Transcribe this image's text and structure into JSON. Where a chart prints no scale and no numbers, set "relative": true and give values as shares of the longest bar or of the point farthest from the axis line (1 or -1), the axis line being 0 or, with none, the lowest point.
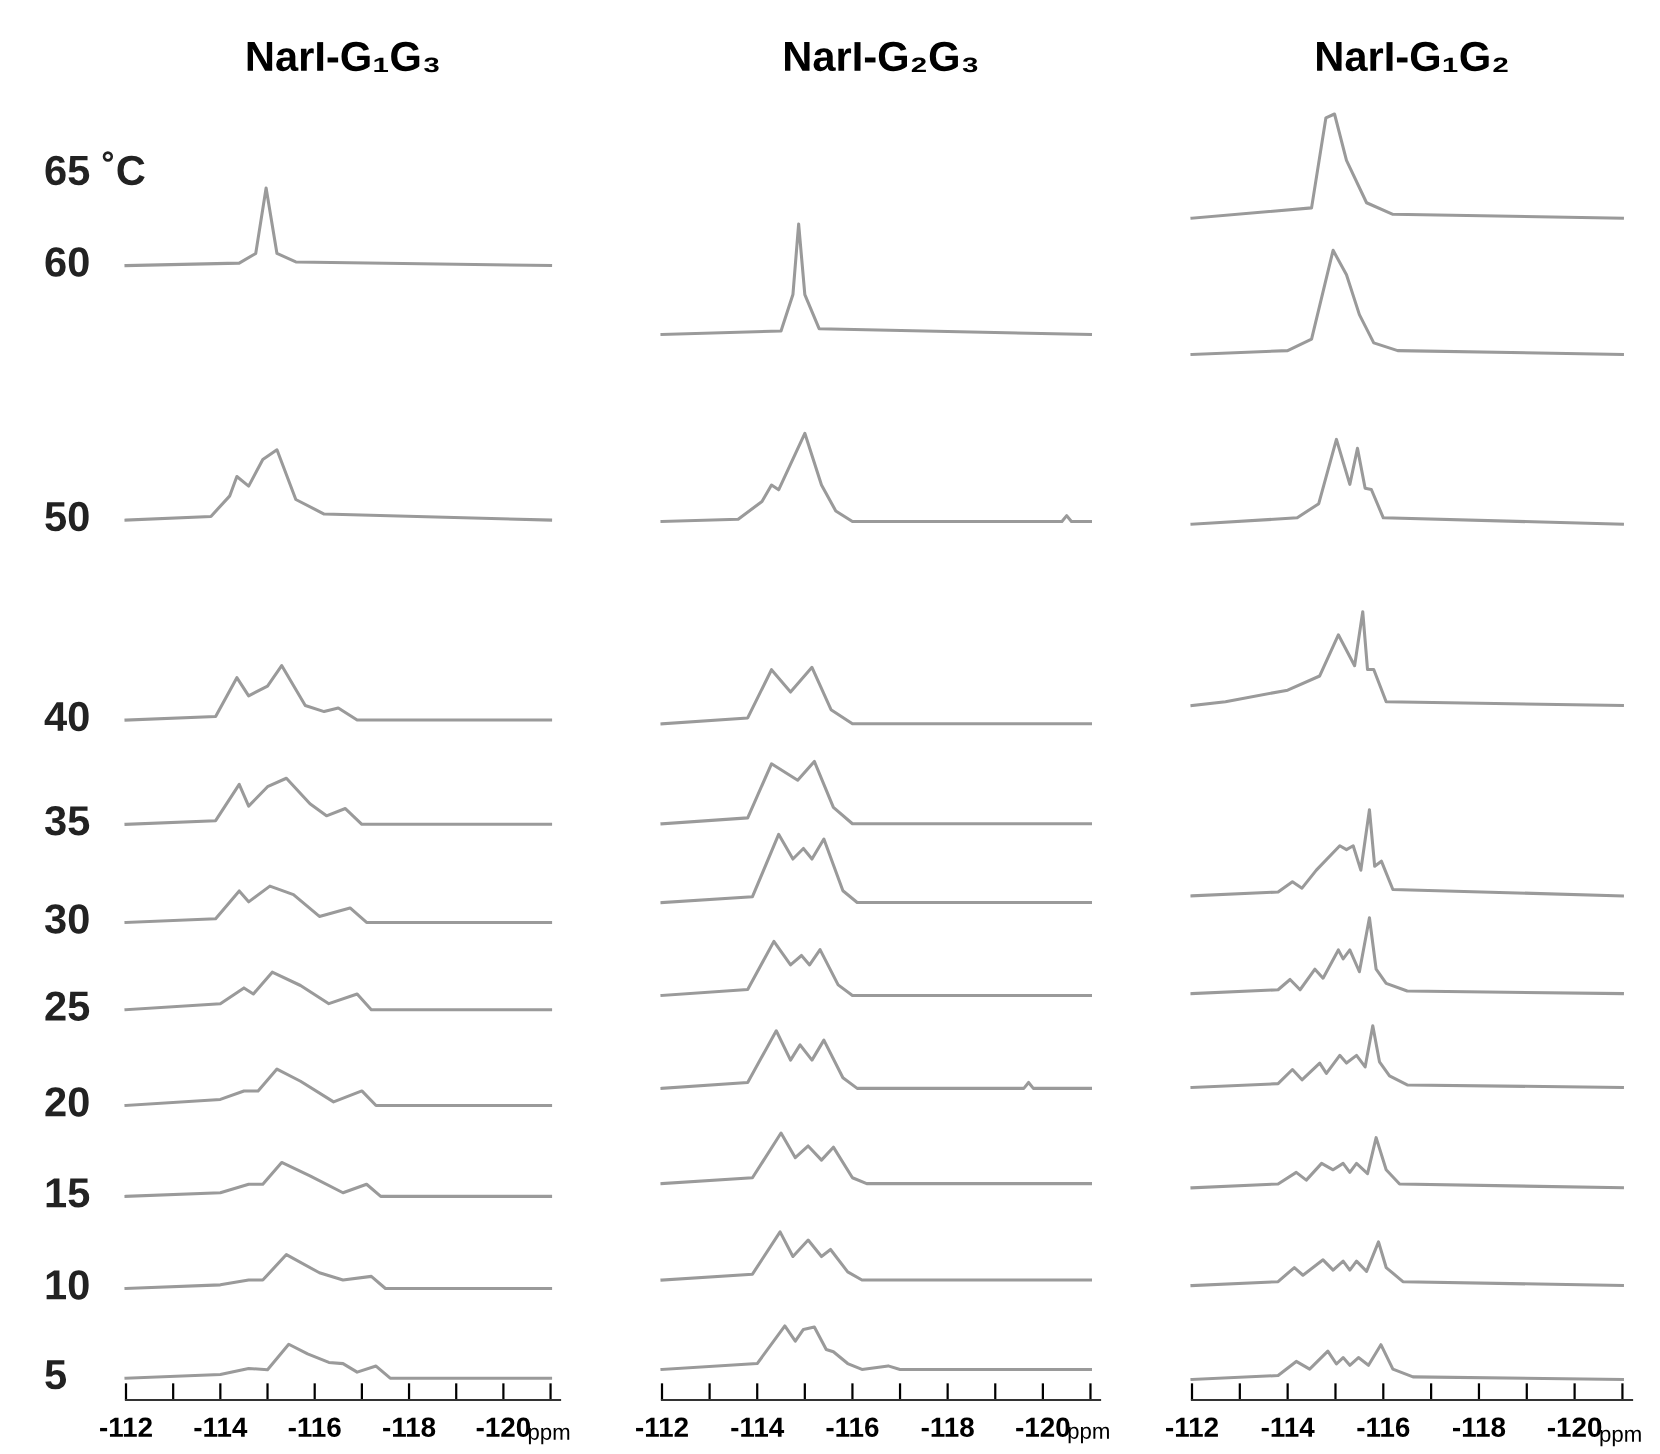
{
  "chart_data": [
    {
      "type": "line",
      "title": "NarI-G₁G₃",
      "xlabel": "ppm",
      "relative": true,
      "annotations": [
        "65 ˚C"
      ],
      "tick_labels": "x",
      "grid": false,
      "legend": false,
      "marker": "none",
      "line_style": "solid",
      "xlim": [
        -112,
        -121.2
      ],
      "xticks": [
        -112,
        {
          "value": -113,
          "label": null
        },
        -114,
        {
          "value": -115,
          "label": null
        },
        -116,
        {
          "value": -117,
          "label": null
        },
        -118,
        {
          "value": -119,
          "label": null
        },
        -120,
        {
          "value": -121,
          "label": null
        }
      ],
      "series": [
        {
          "name": "60",
          "color": "#9a9a9a",
          "x": [
            -112,
            -114.4,
            -114.75,
            -114.97,
            -115.2,
            -115.6,
            -121
          ],
          "values": [
            0.936,
            0.938,
            0.946,
            1.0,
            0.946,
            0.939,
            0.936
          ]
        },
        {
          "name": "50",
          "color": "#9a9a9a",
          "x": [
            -112,
            -113.8,
            -114.2,
            -114.35,
            -114.6,
            -114.9,
            -115.2,
            -115.6,
            -116.2,
            -121
          ],
          "values": [
            0.726,
            0.729,
            0.746,
            0.762,
            0.754,
            0.776,
            0.784,
            0.743,
            0.731,
            0.726
          ]
        },
        {
          "name": "40",
          "color": "#9a9a9a",
          "x": [
            -112,
            -113.9,
            -114.35,
            -114.6,
            -115.0,
            -115.3,
            -115.8,
            -116.2,
            -116.5,
            -116.9,
            -121
          ],
          "values": [
            0.561,
            0.564,
            0.596,
            0.581,
            0.589,
            0.606,
            0.573,
            0.568,
            0.571,
            0.561,
            0.561
          ]
        },
        {
          "name": "35",
          "color": "#9a9a9a",
          "x": [
            -112,
            -113.9,
            -114.4,
            -114.6,
            -115.0,
            -115.4,
            -115.9,
            -116.25,
            -116.65,
            -117,
            -121
          ],
          "values": [
            0.475,
            0.478,
            0.508,
            0.49,
            0.506,
            0.513,
            0.492,
            0.482,
            0.488,
            0.475,
            0.475
          ]
        },
        {
          "name": "30",
          "color": "#9a9a9a",
          "x": [
            -112,
            -113.9,
            -114.4,
            -114.6,
            -115.05,
            -115.55,
            -116.1,
            -116.75,
            -117.1,
            -121
          ],
          "values": [
            0.394,
            0.397,
            0.42,
            0.411,
            0.424,
            0.417,
            0.399,
            0.406,
            0.394,
            0.394
          ]
        },
        {
          "name": "25",
          "color": "#9a9a9a",
          "x": [
            -112,
            -114,
            -114.5,
            -114.7,
            -115.1,
            -115.7,
            -116.3,
            -116.9,
            -117.2,
            -121
          ],
          "values": [
            0.322,
            0.327,
            0.34,
            0.335,
            0.353,
            0.342,
            0.327,
            0.335,
            0.322,
            0.322
          ]
        },
        {
          "name": "20",
          "color": "#9a9a9a",
          "x": [
            -112,
            -114,
            -114.5,
            -114.8,
            -115.2,
            -115.7,
            -116.4,
            -117.0,
            -117.3,
            -121
          ],
          "values": [
            0.243,
            0.248,
            0.255,
            0.255,
            0.273,
            0.263,
            0.246,
            0.255,
            0.243,
            0.243
          ]
        },
        {
          "name": "15",
          "color": "#9a9a9a",
          "x": [
            -112,
            -114,
            -114.6,
            -114.9,
            -115.3,
            -115.9,
            -116.6,
            -117.1,
            -117.4,
            -121
          ],
          "values": [
            0.168,
            0.171,
            0.178,
            0.178,
            0.196,
            0.185,
            0.171,
            0.178,
            0.168,
            0.168
          ]
        },
        {
          "name": "10",
          "color": "#9a9a9a",
          "x": [
            -112,
            -114,
            -114.6,
            -114.9,
            -115.4,
            -116.1,
            -116.6,
            -117.2,
            -117.5,
            -121
          ],
          "values": [
            0.092,
            0.095,
            0.099,
            0.099,
            0.12,
            0.105,
            0.099,
            0.102,
            0.092,
            0.092
          ]
        },
        {
          "name": "5",
          "color": "#9a9a9a",
          "x": [
            -112,
            -114,
            -114.6,
            -115.0,
            -115.45,
            -115.85,
            -116.3,
            -116.6,
            -116.9,
            -117.3,
            -117.6,
            -121
          ],
          "values": [
            0.018,
            0.021,
            0.026,
            0.025,
            0.046,
            0.038,
            0.031,
            0.03,
            0.023,
            0.028,
            0.018,
            0.018
          ]
        }
      ]
    },
    {
      "type": "line",
      "title": "NarI-G₂G₃",
      "xlabel": "ppm",
      "relative": true,
      "tick_labels": "x",
      "grid": false,
      "legend": false,
      "marker": "none",
      "line_style": "solid",
      "xlim": [
        -112,
        -121.2
      ],
      "xticks": [
        -112,
        {
          "value": -113,
          "label": null
        },
        -114,
        {
          "value": -115,
          "label": null
        },
        -116,
        {
          "value": -117,
          "label": null
        },
        -118,
        {
          "value": -119,
          "label": null
        },
        -120,
        {
          "value": -121,
          "label": null
        }
      ],
      "series": [
        {
          "color": "#9a9a9a",
          "x": [
            -112,
            -114.5,
            -114.75,
            -114.87,
            -115.0,
            -115.3,
            -121
          ],
          "values": [
            0.906,
            0.909,
            0.94,
            1.0,
            0.94,
            0.911,
            0.906
          ]
        },
        {
          "color": "#9a9a9a",
          "x": [
            -112,
            -113.6,
            -114.1,
            -114.3,
            -114.45,
            -115.0,
            -115.35,
            -115.65,
            -116,
            -120.4,
            -120.5,
            -120.6,
            -121
          ],
          "values": [
            0.747,
            0.749,
            0.764,
            0.778,
            0.774,
            0.822,
            0.778,
            0.756,
            0.747,
            0.747,
            0.752,
            0.747,
            0.747
          ]
        },
        {
          "color": "#9a9a9a",
          "x": [
            -112,
            -113.8,
            -114.3,
            -114.7,
            -115.15,
            -115.55,
            -116,
            -121
          ],
          "values": [
            0.575,
            0.58,
            0.621,
            0.602,
            0.623,
            0.587,
            0.575,
            0.575
          ]
        },
        {
          "color": "#9a9a9a",
          "x": [
            -112,
            -113.8,
            -114.3,
            -114.85,
            -115.2,
            -115.6,
            -116,
            -121
          ],
          "values": [
            0.49,
            0.495,
            0.541,
            0.527,
            0.543,
            0.504,
            0.49,
            0.49
          ]
        },
        {
          "color": "#9a9a9a",
          "x": [
            -112,
            -113.9,
            -114.45,
            -114.75,
            -114.97,
            -115.15,
            -115.4,
            -115.8,
            -116.1,
            -121
          ],
          "values": [
            0.423,
            0.428,
            0.481,
            0.46,
            0.469,
            0.46,
            0.477,
            0.433,
            0.423,
            0.423
          ]
        },
        {
          "color": "#9a9a9a",
          "x": [
            -112,
            -113.8,
            -114.35,
            -114.7,
            -114.93,
            -115.1,
            -115.32,
            -115.7,
            -116,
            -121
          ],
          "values": [
            0.344,
            0.349,
            0.39,
            0.37,
            0.378,
            0.37,
            0.383,
            0.353,
            0.344,
            0.344
          ]
        },
        {
          "color": "#9a9a9a",
          "x": [
            -112,
            -113.8,
            -114.4,
            -114.7,
            -114.9,
            -115.15,
            -115.4,
            -115.8,
            -116.1,
            -119.6,
            -119.7,
            -119.8,
            -121
          ],
          "values": [
            0.265,
            0.27,
            0.314,
            0.289,
            0.302,
            0.289,
            0.306,
            0.274,
            0.265,
            0.265,
            0.27,
            0.265,
            0.265
          ]
        },
        {
          "color": "#9a9a9a",
          "x": [
            -112,
            -113.9,
            -114.5,
            -114.8,
            -115.07,
            -115.35,
            -115.6,
            -116,
            -116.3,
            -121
          ],
          "values": [
            0.184,
            0.189,
            0.227,
            0.206,
            0.216,
            0.204,
            0.215,
            0.189,
            0.184,
            0.184
          ]
        },
        {
          "color": "#9a9a9a",
          "x": [
            -112,
            -113.9,
            -114.48,
            -114.75,
            -115.07,
            -115.35,
            -115.54,
            -115.9,
            -116.2,
            -121
          ],
          "values": [
            0.102,
            0.107,
            0.143,
            0.122,
            0.136,
            0.122,
            0.128,
            0.109,
            0.102,
            0.102
          ]
        },
        {
          "color": "#9a9a9a",
          "x": [
            -112,
            -114,
            -114.58,
            -114.8,
            -114.97,
            -115.2,
            -115.45,
            -115.6,
            -115.9,
            -116.2,
            -116.75,
            -117,
            -121
          ],
          "values": [
            0.026,
            0.031,
            0.063,
            0.05,
            0.06,
            0.062,
            0.043,
            0.041,
            0.031,
            0.026,
            0.029,
            0.026,
            0.026
          ]
        }
      ]
    },
    {
      "type": "line",
      "title": "NarI-G₁G₂",
      "xlabel": "ppm",
      "relative": true,
      "tick_labels": "x",
      "grid": false,
      "legend": false,
      "marker": "none",
      "line_style": "solid",
      "xlim": [
        -112,
        -121.2
      ],
      "xticks": [
        -112,
        {
          "value": -113,
          "label": null
        },
        -114,
        {
          "value": -115,
          "label": null
        },
        -116,
        {
          "value": -117,
          "label": null
        },
        -118,
        {
          "value": -119,
          "label": null
        },
        -120,
        {
          "value": -121,
          "label": null
        }
      ],
      "series": [
        {
          "color": "#9a9a9a",
          "x": [
            -112,
            -114.5,
            -114.8,
            -114.98,
            -115.23,
            -115.65,
            -116.2,
            -121
          ],
          "values": [
            0.919,
            0.927,
            0.997,
            1.0,
            0.964,
            0.931,
            0.922,
            0.919
          ]
        },
        {
          "color": "#9a9a9a",
          "x": [
            -112,
            -114,
            -114.5,
            -114.95,
            -115.23,
            -115.5,
            -115.8,
            -116.3,
            -121
          ],
          "values": [
            0.813,
            0.816,
            0.825,
            0.894,
            0.875,
            0.844,
            0.822,
            0.816,
            0.813
          ]
        },
        {
          "color": "#9a9a9a",
          "x": [
            -112,
            -114.2,
            -114.65,
            -115.02,
            -115.3,
            -115.46,
            -115.62,
            -115.75,
            -116,
            -121
          ],
          "values": [
            0.681,
            0.686,
            0.697,
            0.747,
            0.712,
            0.74,
            0.709,
            0.708,
            0.686,
            0.681
          ]
        },
        {
          "color": "#9a9a9a",
          "x": [
            -112,
            -112.7,
            -114,
            -114.67,
            -115.06,
            -115.4,
            -115.57,
            -115.67,
            -115.8,
            -116.06,
            -121
          ],
          "values": [
            0.54,
            0.543,
            0.552,
            0.563,
            0.595,
            0.571,
            0.613,
            0.568,
            0.568,
            0.543,
            0.54
          ]
        },
        {
          "color": "#9a9a9a",
          "x": [
            -112,
            -113.8,
            -114.1,
            -114.3,
            -114.6,
            -115.09,
            -115.23,
            -115.37,
            -115.53,
            -115.71,
            -115.82,
            -115.96,
            -116.2,
            -121
          ],
          "values": [
            0.392,
            0.395,
            0.403,
            0.398,
            0.412,
            0.431,
            0.428,
            0.431,
            0.412,
            0.459,
            0.415,
            0.419,
            0.397,
            0.392
          ]
        },
        {
          "color": "#9a9a9a",
          "x": [
            -112,
            -113.8,
            -114.05,
            -114.26,
            -114.57,
            -114.74,
            -115.06,
            -115.16,
            -115.3,
            -115.5,
            -115.71,
            -115.85,
            -116.06,
            -116.5,
            -121
          ],
          "values": [
            0.316,
            0.319,
            0.327,
            0.319,
            0.335,
            0.328,
            0.35,
            0.343,
            0.35,
            0.333,
            0.375,
            0.335,
            0.324,
            0.318,
            0.316
          ]
        },
        {
          "color": "#9a9a9a",
          "x": [
            -112,
            -113.8,
            -114.1,
            -114.3,
            -114.67,
            -114.81,
            -115.09,
            -115.23,
            -115.44,
            -115.62,
            -115.78,
            -115.92,
            -116.13,
            -116.5,
            -121
          ],
          "values": [
            0.243,
            0.246,
            0.257,
            0.249,
            0.262,
            0.254,
            0.268,
            0.262,
            0.268,
            0.259,
            0.291,
            0.263,
            0.252,
            0.245,
            0.243
          ]
        },
        {
          "color": "#9a9a9a",
          "x": [
            -112,
            -113.8,
            -114.18,
            -114.39,
            -114.71,
            -114.95,
            -115.16,
            -115.3,
            -115.44,
            -115.67,
            -115.85,
            -116.06,
            -116.34,
            -121
          ],
          "values": [
            0.165,
            0.168,
            0.177,
            0.171,
            0.184,
            0.179,
            0.184,
            0.177,
            0.184,
            0.176,
            0.204,
            0.179,
            0.168,
            0.165
          ]
        },
        {
          "color": "#9a9a9a",
          "x": [
            -112,
            -113.8,
            -114.14,
            -114.32,
            -114.74,
            -114.95,
            -115.16,
            -115.3,
            -115.44,
            -115.65,
            -115.9,
            -116.06,
            -116.41,
            -121
          ],
          "values": [
            0.089,
            0.092,
            0.103,
            0.097,
            0.109,
            0.101,
            0.108,
            0.101,
            0.108,
            0.1,
            0.123,
            0.103,
            0.092,
            0.089
          ]
        },
        {
          "color": "#9a9a9a",
          "x": [
            -112,
            -113.8,
            -114.18,
            -114.46,
            -114.84,
            -115.02,
            -115.16,
            -115.3,
            -115.48,
            -115.69,
            -115.95,
            -116.2,
            -116.62,
            -121
          ],
          "values": [
            0.016,
            0.019,
            0.03,
            0.024,
            0.038,
            0.028,
            0.033,
            0.027,
            0.033,
            0.027,
            0.043,
            0.024,
            0.018,
            0.016
          ]
        }
      ]
    }
  ]
}
